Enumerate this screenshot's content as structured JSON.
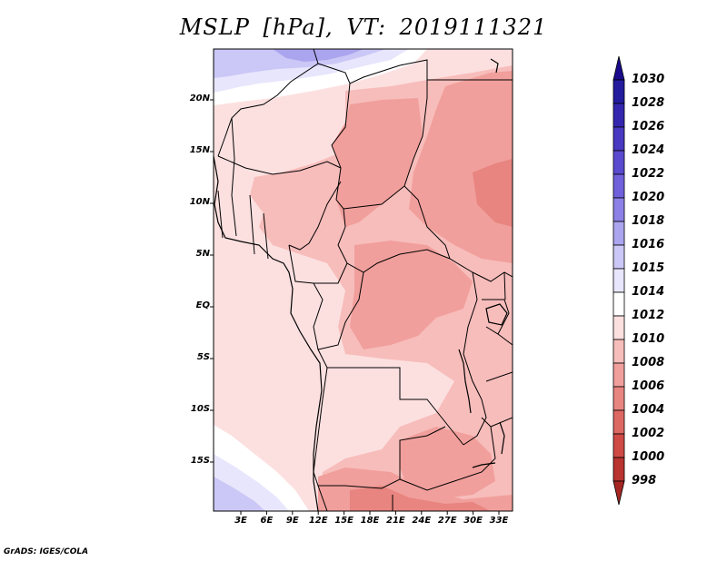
{
  "title": {
    "variable": "MSLP",
    "units": "[hPa],",
    "valid_time_label": "VT:",
    "valid_time": "2019111321"
  },
  "map": {
    "lat_labels": [
      "20N",
      "15N",
      "10N",
      "5N",
      "EQ",
      "5S",
      "10S",
      "15S"
    ],
    "lon_labels": [
      "3E",
      "6E",
      "9E",
      "12E",
      "15E",
      "18E",
      "21E",
      "24E",
      "27E",
      "30E",
      "33E"
    ]
  },
  "colorbar": {
    "levels": [
      "1030",
      "1028",
      "1026",
      "1024",
      "1022",
      "1020",
      "1018",
      "1016",
      "1015",
      "1014",
      "1012",
      "1010",
      "1008",
      "1006",
      "1004",
      "1002",
      "1000",
      "998"
    ],
    "colors": [
      "#1a0a8c",
      "#231c9e",
      "#3526b0",
      "#4838c2",
      "#5a4ad0",
      "#7060dc",
      "#8c80e6",
      "#aba4ee",
      "#cbc7f6",
      "#e8e6fc",
      "#ffffff",
      "#fce0e0",
      "#f7bdbb",
      "#f19f9c",
      "#e88580",
      "#dd6762",
      "#cf4a45",
      "#b93330",
      "#a52623"
    ]
  },
  "credit": "GrADS: IGES/COLA"
}
